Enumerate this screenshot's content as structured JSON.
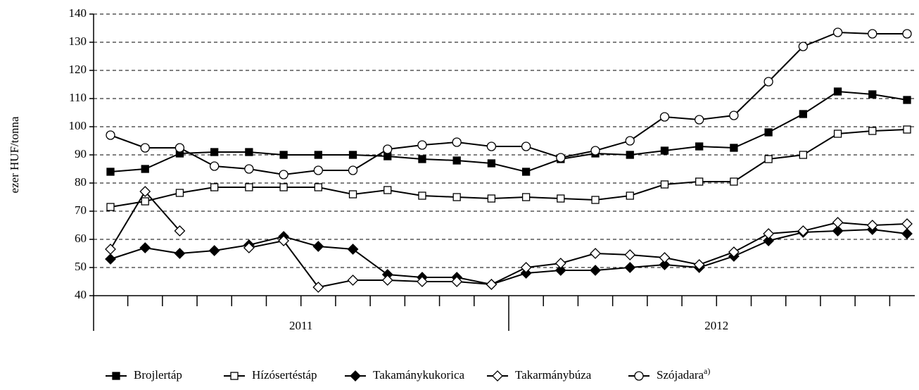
{
  "chart_data": {
    "type": "line",
    "y_label": "ezer HUF/tonna",
    "categories": [
      null,
      null,
      null,
      null,
      null,
      null,
      null,
      null,
      null,
      null,
      null,
      null,
      null,
      null,
      null,
      null,
      null,
      null,
      null,
      null,
      null,
      null,
      null,
      null
    ],
    "year_labels": [
      "2011",
      "2012"
    ],
    "ylim": [
      40,
      140
    ],
    "yticks": [
      40,
      50,
      60,
      70,
      80,
      90,
      100,
      110,
      120,
      130,
      140
    ],
    "grid": true,
    "legend": "bottom",
    "series": [
      {
        "name": "Brojlertáp",
        "color": "#000000",
        "marker": "square",
        "filled": true,
        "values": [
          84,
          85,
          90.5,
          91,
          91,
          90,
          90,
          90,
          89.5,
          88.5,
          88,
          87,
          84,
          88.5,
          90.5,
          90,
          91.5,
          93,
          92.5,
          98,
          104.5,
          112.5,
          111.5,
          109.5
        ]
      },
      {
        "name": "Hízósertéstáp",
        "color": "#000000",
        "marker": "square",
        "filled": false,
        "values": [
          71.5,
          73.5,
          76.5,
          78.5,
          78.5,
          78.5,
          78.5,
          76,
          77.5,
          75.5,
          75,
          74.5,
          75,
          74.5,
          74,
          75.5,
          79.5,
          80.5,
          80.5,
          88.5,
          90,
          97.5,
          98.5,
          99
        ]
      },
      {
        "name": "Takamánykukorica",
        "color": "#000000",
        "marker": "diamond",
        "filled": true,
        "values": [
          53,
          57,
          55,
          56,
          58,
          61,
          57.5,
          56.5,
          47.5,
          46.5,
          46.5,
          44,
          48,
          49,
          49,
          50,
          51,
          50,
          54,
          59.5,
          62.5,
          63,
          63.5,
          62
        ]
      },
      {
        "name": "Takarmánybúza",
        "color": "#000000",
        "marker": "diamond",
        "filled": false,
        "values": [
          56.5,
          77,
          63,
          null,
          57,
          59.5,
          43,
          45.5,
          45.5,
          45,
          45,
          44,
          50,
          51.5,
          55,
          54.5,
          53.5,
          51,
          55.5,
          62,
          63,
          66,
          65,
          65.5
        ]
      },
      {
        "name": "Szójadara",
        "note": "a)",
        "color": "#000000",
        "marker": "circle",
        "filled": false,
        "values": [
          97,
          92.5,
          92.5,
          86,
          85,
          83,
          84.5,
          84.5,
          92,
          93.5,
          94.5,
          93,
          93,
          89,
          91.5,
          95,
          103.5,
          102.5,
          104,
          116,
          128.5,
          133.5,
          133,
          133
        ]
      }
    ]
  }
}
